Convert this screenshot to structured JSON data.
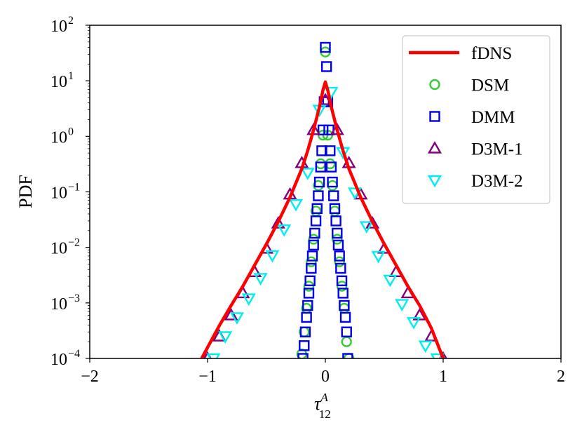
{
  "chart_data": {
    "type": "scatter",
    "xlabel_main": "τ",
    "xlabel_sup": "A",
    "xlabel_sub": "12",
    "ylabel": "PDF",
    "xlim": [
      -2,
      2
    ],
    "ylim": [
      0.0001,
      100
    ],
    "yscale": "log",
    "xticks": [
      {
        "v": -2,
        "label": "−2"
      },
      {
        "v": -1,
        "label": "−1"
      },
      {
        "v": 0,
        "label": "0"
      },
      {
        "v": 1,
        "label": "1"
      },
      {
        "v": 2,
        "label": "2"
      }
    ],
    "yticks": [
      {
        "v": 0.0001,
        "base": "10",
        "exp": "−4"
      },
      {
        "v": 0.001,
        "base": "10",
        "exp": "−3"
      },
      {
        "v": 0.01,
        "base": "10",
        "exp": "−2"
      },
      {
        "v": 0.1,
        "base": "10",
        "exp": "−1"
      },
      {
        "v": 1,
        "base": "10",
        "exp": "0"
      },
      {
        "v": 10,
        "base": "10",
        "exp": "1"
      },
      {
        "v": 100,
        "base": "10",
        "exp": "2"
      }
    ],
    "legend_position": "top-right",
    "series": [
      {
        "name": "fDNS",
        "marker": "line",
        "color": "#ff0000",
        "x": [
          -1.05,
          -0.9,
          -0.8,
          -0.7,
          -0.6,
          -0.5,
          -0.4,
          -0.3,
          -0.2,
          -0.15,
          -0.1,
          -0.05,
          -0.02,
          0.0,
          0.02,
          0.05,
          0.1,
          0.15,
          0.2,
          0.3,
          0.4,
          0.5,
          0.6,
          0.7,
          0.8,
          0.9,
          1.0
        ],
        "y": [
          0.0001,
          0.00039,
          0.0009,
          0.002,
          0.0048,
          0.0115,
          0.029,
          0.08,
          0.26,
          0.55,
          1.3,
          3.4,
          6.8,
          9.5,
          6.8,
          3.4,
          1.3,
          0.55,
          0.26,
          0.08,
          0.029,
          0.0115,
          0.0048,
          0.002,
          0.0009,
          0.00035,
          0.0001
        ]
      },
      {
        "name": "DSM",
        "marker": "circle",
        "color": "#33cc33",
        "x": [
          -0.2,
          -0.18,
          -0.16,
          -0.14,
          -0.12,
          -0.1,
          -0.08,
          -0.06,
          -0.04,
          -0.02,
          0.0,
          0.02,
          0.04,
          0.06,
          0.08,
          0.1,
          0.12,
          0.14,
          0.16,
          0.18,
          0.2
        ],
        "y": [
          0.00012,
          0.0003,
          0.0008,
          0.002,
          0.0055,
          0.014,
          0.045,
          0.13,
          0.32,
          1.05,
          33,
          1.05,
          0.32,
          0.13,
          0.045,
          0.014,
          0.0055,
          0.002,
          0.0008,
          0.0002,
          0.0001
        ]
      },
      {
        "name": "DMM",
        "marker": "square",
        "color": "#0000ee",
        "x": [
          -0.19,
          -0.18,
          -0.17,
          -0.16,
          -0.15,
          -0.14,
          -0.13,
          -0.12,
          -0.11,
          -0.1,
          -0.09,
          -0.08,
          -0.07,
          -0.06,
          -0.05,
          -0.04,
          -0.03,
          -0.02,
          -0.01,
          0.0,
          0.01,
          0.02,
          0.03,
          0.04,
          0.05,
          0.06,
          0.07,
          0.08,
          0.09,
          0.1,
          0.11,
          0.12,
          0.13,
          0.14,
          0.15,
          0.16,
          0.17,
          0.18,
          0.19
        ],
        "y": [
          0.0001,
          0.00017,
          0.0003,
          0.00055,
          0.0009,
          0.0015,
          0.0025,
          0.0042,
          0.007,
          0.011,
          0.018,
          0.03,
          0.05,
          0.085,
          0.15,
          0.28,
          0.55,
          1.3,
          4.2,
          40,
          18,
          4.2,
          1.3,
          0.55,
          0.28,
          0.15,
          0.085,
          0.05,
          0.03,
          0.018,
          0.011,
          0.007,
          0.0042,
          0.0025,
          0.0015,
          0.0009,
          0.00055,
          0.0003,
          0.0001
        ]
      },
      {
        "name": "D3M-1",
        "marker": "triangle-up",
        "color": "#800080",
        "x": [
          -1.0,
          -0.9,
          -0.8,
          -0.7,
          -0.6,
          -0.5,
          -0.4,
          -0.3,
          -0.2,
          -0.1,
          0.0,
          0.1,
          0.2,
          0.3,
          0.4,
          0.5,
          0.6,
          0.7,
          0.8,
          0.9,
          1.0
        ],
        "y": [
          0.0001,
          0.00025,
          0.0006,
          0.0015,
          0.0036,
          0.0095,
          0.027,
          0.09,
          0.33,
          1.3,
          4.5,
          1.3,
          0.33,
          0.09,
          0.027,
          0.0095,
          0.0036,
          0.0015,
          0.0006,
          0.00025,
          0.0001
        ]
      },
      {
        "name": "D3M-2",
        "marker": "triangle-down",
        "color": "#00eeee",
        "x": [
          -0.95,
          -0.85,
          -0.75,
          -0.65,
          -0.55,
          -0.45,
          -0.35,
          -0.25,
          -0.15,
          -0.05,
          0.05,
          0.15,
          0.25,
          0.35,
          0.45,
          0.55,
          0.65,
          0.75,
          0.85,
          0.95
        ],
        "y": [
          0.0001,
          0.00025,
          0.00055,
          0.0012,
          0.0028,
          0.0072,
          0.021,
          0.06,
          0.22,
          3.0,
          6.3,
          0.52,
          0.097,
          0.024,
          0.007,
          0.0026,
          0.00095,
          0.00045,
          0.00017,
          0.0001
        ]
      }
    ]
  }
}
